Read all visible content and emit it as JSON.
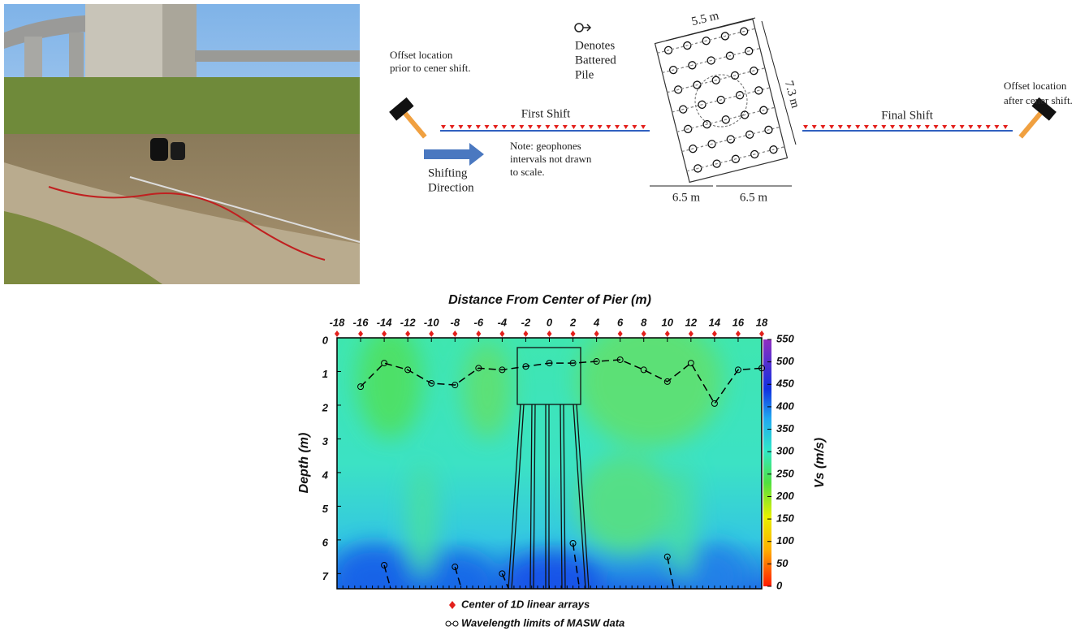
{
  "diagram": {
    "offset_prior": [
      "Offset location",
      "prior to cener shift."
    ],
    "first_shift": "First Shift",
    "shifting_direction": [
      "Shifting",
      "Direction"
    ],
    "note": [
      "Note: geophones",
      "intervals not drawn",
      "to scale."
    ],
    "battered_pile": [
      "Denotes",
      "Battered",
      "Pile"
    ],
    "dim_width": "5.5 m",
    "dim_length": "7.3 m",
    "dim_left": "6.5 m",
    "dim_right": "6.5 m",
    "final_shift": "Final Shift",
    "offset_after": [
      "Offset location",
      "after cener shift."
    ]
  },
  "chart_data": {
    "type": "contour",
    "title": "Distance From Center of Pier (m)",
    "y_label": "Depth (m)",
    "colorbar_label": "Vs (m/s)",
    "xlim": [
      -18,
      18
    ],
    "xticks": [
      -18,
      -16,
      -14,
      -12,
      -10,
      -8,
      -6,
      -4,
      -2,
      0,
      2,
      4,
      6,
      8,
      10,
      12,
      14,
      16,
      18
    ],
    "ylim": [
      0,
      7.45
    ],
    "yticks": [
      0,
      1,
      2,
      3,
      4,
      5,
      6,
      7
    ],
    "clim": [
      0,
      550
    ],
    "cticks": [
      0,
      50,
      100,
      150,
      200,
      250,
      300,
      350,
      400,
      450,
      500,
      550
    ],
    "array_centers": {
      "name": "Center of 1D linear arrays",
      "color": "#e3201c",
      "x": [
        -18,
        -16,
        -14,
        -12,
        -10,
        -8,
        -6,
        -4,
        -2,
        0,
        2,
        4,
        6,
        8,
        10,
        12,
        14,
        16,
        18
      ]
    },
    "series": [
      {
        "name": "Wavelength limits of MASW data",
        "color": "#000000",
        "x": [
          -16,
          -14,
          -12,
          -10,
          -8,
          -6,
          -4,
          -2,
          0,
          2,
          4,
          6,
          8,
          10,
          12,
          14,
          16,
          18
        ],
        "values": [
          1.45,
          0.75,
          0.95,
          1.35,
          1.4,
          0.9,
          0.95,
          0.85,
          0.75,
          0.75,
          0.7,
          0.65,
          0.95,
          1.3,
          0.75,
          1.95,
          0.95,
          0.9
        ]
      }
    ],
    "lower_limits": {
      "x": [
        -14,
        -8,
        -4,
        2,
        10
      ],
      "values": [
        6.75,
        6.8,
        7.0,
        6.1,
        6.5
      ]
    }
  }
}
